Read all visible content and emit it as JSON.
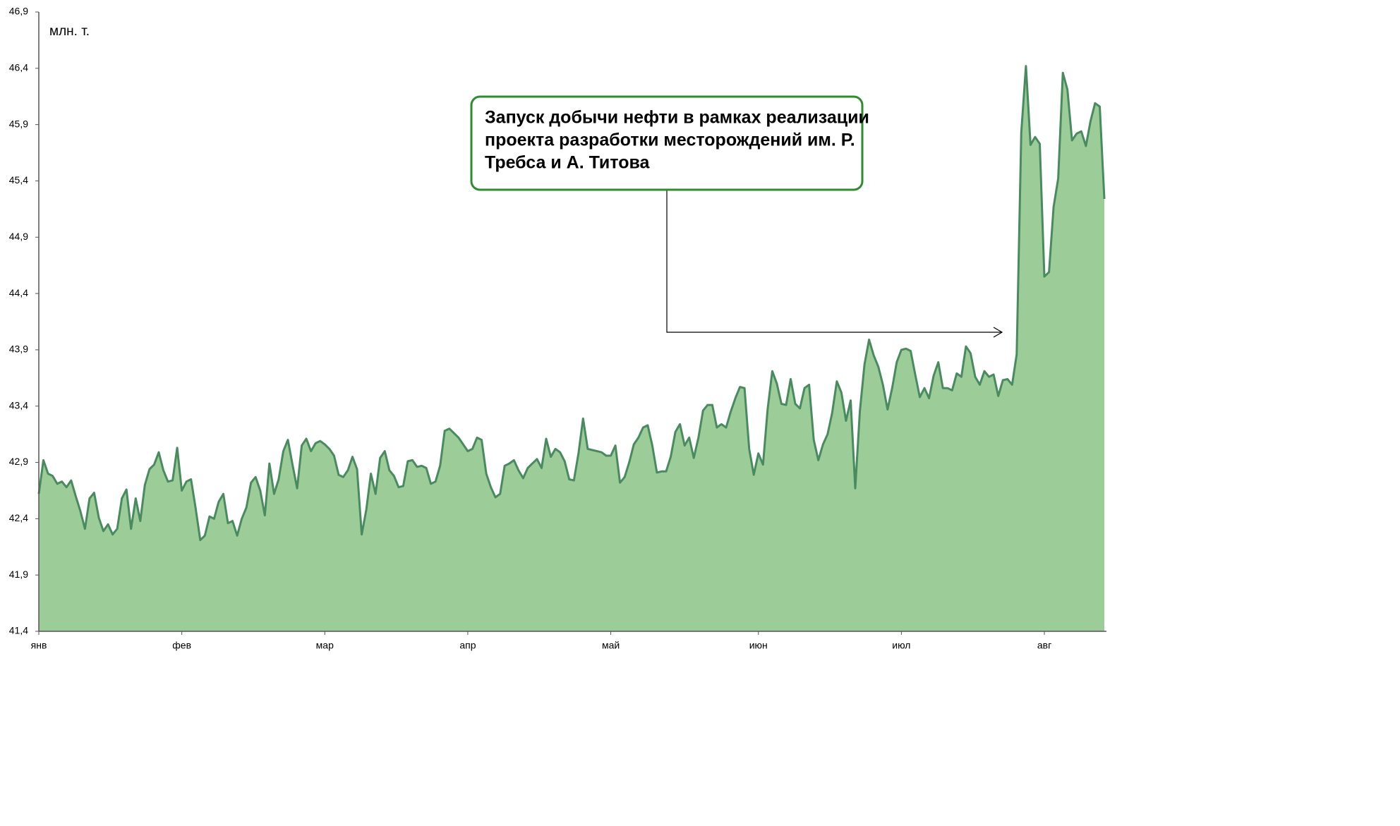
{
  "chart_data": {
    "type": "area",
    "unit_label": "млн. т.",
    "annotation": [
      "Запуск добычи нефти в рамках реализации",
      "проекта разработки месторождений им. Р.",
      "Требса и А. Титова"
    ],
    "color": "#9ccc98",
    "line_color": "#4a8a60",
    "annotation_color": "#2e8b2e",
    "ylim": [
      41.4,
      46.9
    ],
    "yticks": [
      {
        "value": 41.4,
        "label": "41,4"
      },
      {
        "value": 41.9,
        "label": "41,9"
      },
      {
        "value": 42.4,
        "label": "42,4"
      },
      {
        "value": 42.9,
        "label": "42,9"
      },
      {
        "value": 43.4,
        "label": "43,4"
      },
      {
        "value": 43.9,
        "label": "43,9"
      },
      {
        "value": 44.4,
        "label": "44,4"
      },
      {
        "value": 44.9,
        "label": "44,9"
      },
      {
        "value": 45.4,
        "label": "45,4"
      },
      {
        "value": 45.9,
        "label": "45,9"
      },
      {
        "value": 46.4,
        "label": "46,4"
      },
      {
        "value": 46.9,
        "label": "46,9"
      }
    ],
    "xlim": [
      0,
      231
    ],
    "xticks": [
      {
        "value": 0,
        "label": "янв"
      },
      {
        "value": 31,
        "label": "фев"
      },
      {
        "value": 62,
        "label": "мар"
      },
      {
        "value": 93,
        "label": "апр"
      },
      {
        "value": 124,
        "label": "май"
      },
      {
        "value": 156,
        "label": "июн"
      },
      {
        "value": 187,
        "label": "июл"
      },
      {
        "value": 218,
        "label": "авг"
      }
    ],
    "x": [
      0,
      1,
      2,
      3,
      4,
      5,
      6,
      7,
      8,
      9,
      10,
      11,
      12,
      13,
      14,
      15,
      16,
      17,
      18,
      19,
      20,
      21,
      22,
      23,
      24,
      25,
      26,
      27,
      28,
      29,
      30,
      31,
      32,
      33,
      34,
      35,
      36,
      37,
      38,
      39,
      40,
      41,
      42,
      43,
      44,
      45,
      46,
      47,
      48,
      49,
      50,
      51,
      52,
      53,
      54,
      55,
      56,
      57,
      58,
      59,
      60,
      61,
      62,
      63,
      64,
      65,
      66,
      67,
      68,
      69,
      70,
      71,
      72,
      73,
      74,
      75,
      76,
      77,
      78,
      79,
      80,
      81,
      82,
      83,
      84,
      85,
      86,
      87,
      88,
      89,
      90,
      91,
      92,
      93,
      94,
      95,
      96,
      97,
      98,
      99,
      100,
      101,
      102,
      103,
      104,
      105,
      106,
      107,
      108,
      109,
      110,
      111,
      112,
      113,
      114,
      115,
      116,
      117,
      118,
      119,
      120,
      121,
      122,
      123,
      124,
      125,
      126,
      127,
      128,
      129,
      130,
      131,
      132,
      133,
      134,
      135,
      136,
      137,
      138,
      139,
      140,
      141,
      142,
      143,
      144,
      145,
      146,
      147,
      148,
      149,
      150,
      151,
      152,
      153,
      154,
      155,
      156,
      157,
      158,
      159,
      160,
      161,
      162,
      163,
      164,
      165,
      166,
      167,
      168,
      169,
      170,
      171,
      172,
      173,
      174,
      175,
      176,
      177,
      178,
      179,
      180,
      181,
      182,
      183,
      184,
      185,
      186,
      187,
      188,
      189,
      190,
      191,
      192,
      193,
      194,
      195,
      196,
      197,
      198,
      199,
      200,
      201,
      202,
      203,
      204,
      205,
      206,
      207,
      208,
      209,
      210,
      211,
      212,
      213,
      214,
      215,
      216,
      217,
      218,
      219,
      220,
      221,
      222,
      223,
      224,
      225,
      226,
      227,
      228,
      229,
      230,
      231
    ],
    "values": [
      42.62,
      42.92,
      42.8,
      42.78,
      42.71,
      42.73,
      42.68,
      42.74,
      42.6,
      42.47,
      42.31,
      42.58,
      42.63,
      42.41,
      42.29,
      42.35,
      42.26,
      42.31,
      42.58,
      42.66,
      42.31,
      42.58,
      42.38,
      42.7,
      42.84,
      42.88,
      42.99,
      42.83,
      42.73,
      42.74,
      43.03,
      42.65,
      42.73,
      42.75,
      42.49,
      42.21,
      42.25,
      42.42,
      42.4,
      42.55,
      42.62,
      42.36,
      42.38,
      42.25,
      42.4,
      42.5,
      42.72,
      42.77,
      42.65,
      42.43,
      42.89,
      42.62,
      42.75,
      43.0,
      43.1,
      42.88,
      42.67,
      43.05,
      43.11,
      43.0,
      43.07,
      43.09,
      43.06,
      43.02,
      42.96,
      42.79,
      42.77,
      42.83,
      42.95,
      42.84,
      42.26,
      42.48,
      42.8,
      42.62,
      42.94,
      43.0,
      42.83,
      42.78,
      42.68,
      42.69,
      42.91,
      42.92,
      42.86,
      42.87,
      42.85,
      42.71,
      42.73,
      42.87,
      43.18,
      43.2,
      43.16,
      43.12,
      43.06,
      43.0,
      43.02,
      43.12,
      43.1,
      42.8,
      42.68,
      42.59,
      42.62,
      42.87,
      42.89,
      42.92,
      42.83,
      42.76,
      42.85,
      42.89,
      42.93,
      42.85,
      43.11,
      42.95,
      43.02,
      42.99,
      42.91,
      42.75,
      42.74,
      42.98,
      43.29,
      43.02,
      43.01,
      43.0,
      42.99,
      42.96,
      42.96,
      43.05,
      42.72,
      42.77,
      42.9,
      43.06,
      43.12,
      43.21,
      43.23,
      43.05,
      42.81,
      42.82,
      42.82,
      42.95,
      43.17,
      43.24,
      43.05,
      43.12,
      42.94,
      43.12,
      43.36,
      43.41,
      43.41,
      43.21,
      43.24,
      43.21,
      43.35,
      43.47,
      43.57,
      43.56,
      43.02,
      42.79,
      42.98,
      42.88,
      43.37,
      43.71,
      43.6,
      43.42,
      43.41,
      43.64,
      43.42,
      43.38,
      43.56,
      43.59,
      43.1,
      42.92,
      43.06,
      43.15,
      43.34,
      43.62,
      43.52,
      43.27,
      43.45,
      42.67,
      43.35,
      43.77,
      43.99,
      43.85,
      43.75,
      43.59,
      43.37,
      43.56,
      43.79,
      43.9,
      43.91,
      43.89,
      43.68,
      43.48,
      43.56,
      43.47,
      43.67,
      43.79,
      43.56,
      43.56,
      43.54,
      43.69,
      43.66,
      43.93,
      43.87,
      43.66,
      43.59,
      43.71,
      43.66,
      43.68,
      43.49,
      43.63,
      43.64,
      43.59,
      43.86,
      45.83,
      46.42,
      45.72,
      45.79,
      45.73,
      44.55,
      44.59,
      45.17,
      45.42,
      46.36,
      46.21,
      45.76,
      45.82,
      45.84,
      45.71,
      45.93,
      46.09,
      46.06,
      45.24
    ]
  }
}
